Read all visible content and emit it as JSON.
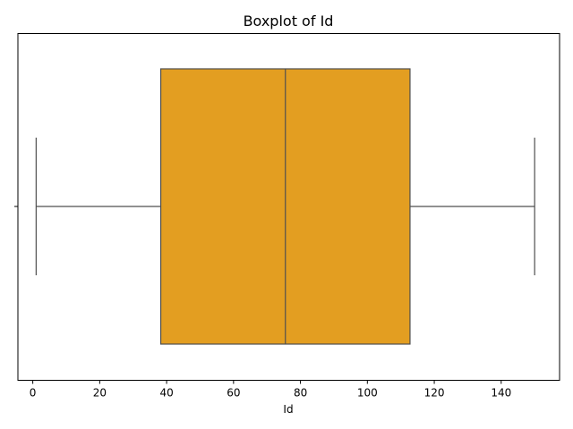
{
  "chart_data": {
    "type": "box",
    "title": "Boxplot of Id",
    "xlabel": "Id",
    "ylabel": "",
    "orientation": "horizontal",
    "xlim": [
      -4.45,
      157.45
    ],
    "xticks": [
      0,
      20,
      40,
      60,
      80,
      100,
      120,
      140
    ],
    "grid": false,
    "box_color": "#e39e21",
    "line_color": "#4f4f4f",
    "stats": {
      "min": 1,
      "q1": 38.25,
      "median": 75.5,
      "q3": 112.75,
      "max": 150
    }
  }
}
